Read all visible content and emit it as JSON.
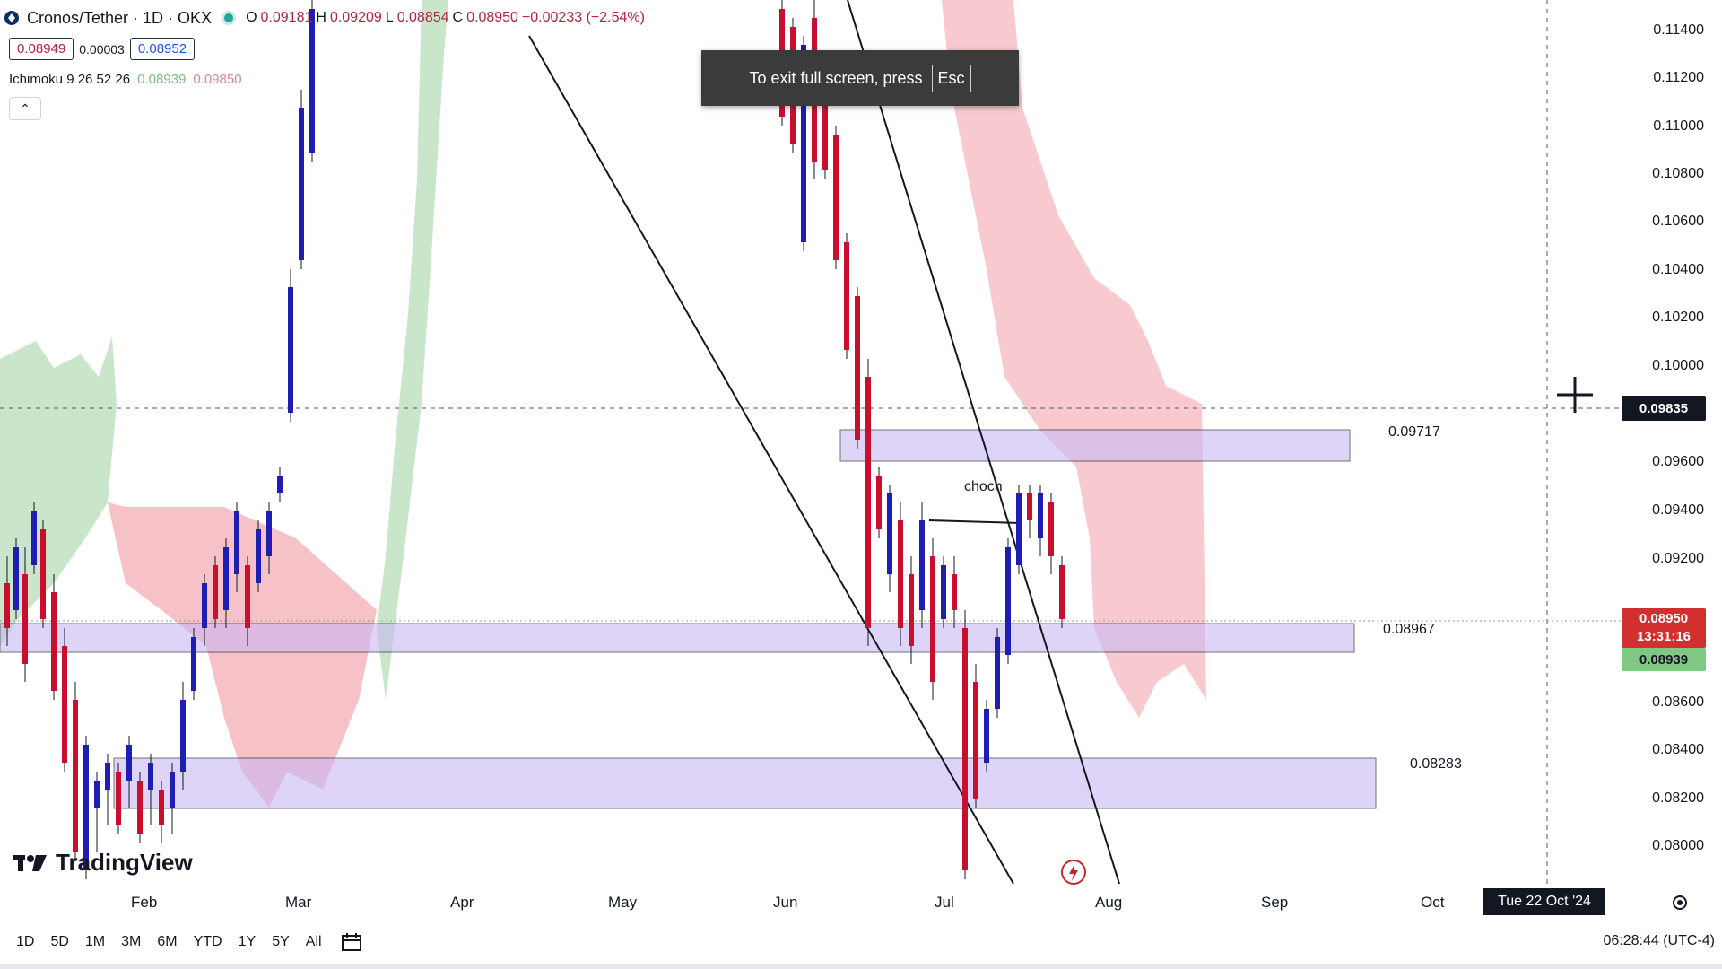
{
  "header": {
    "symbol": "Cronos/Tether · 1D · OKX",
    "open_label": "O",
    "open": "0.09181",
    "high_label": "H",
    "high": "0.09209",
    "low_label": "L",
    "low": "0.08854",
    "close_label": "C",
    "close": "0.08950",
    "change": "−0.00233 (−2.54%)"
  },
  "quote": {
    "sell": "0.08949",
    "spread": "0.00003",
    "buy": "0.08952"
  },
  "indicator": {
    "name": "Ichimoku 9 26 52 26",
    "v1": "0.08939",
    "v2": "0.09850"
  },
  "toast": {
    "text": "To exit full screen, press",
    "key": "Esc"
  },
  "price_axis": [
    "0.11400",
    "0.11200",
    "0.11000",
    "0.10800",
    "0.10600",
    "0.10400",
    "0.10200",
    "0.10000",
    "0.09600",
    "0.09400",
    "0.09200",
    "0.08600",
    "0.08400",
    "0.08200",
    "0.08000"
  ],
  "tags": {
    "crosshair": "0.09835",
    "last_price": "0.08950",
    "countdown": "13:31:16",
    "ichimoku": "0.08939"
  },
  "zones": [
    {
      "label": "0.09717"
    },
    {
      "label": "0.08967"
    },
    {
      "label": "0.08283"
    }
  ],
  "annotation": "choch",
  "time_axis": [
    "Feb",
    "Mar",
    "Apr",
    "May",
    "Jun",
    "Jul",
    "Aug",
    "Sep",
    "Oct"
  ],
  "date_tag": "Tue 22 Oct '24",
  "bottom_bar": {
    "timeframes": [
      "1D",
      "5D",
      "1M",
      "3M",
      "6M",
      "YTD",
      "1Y",
      "5Y",
      "All"
    ]
  },
  "clock": "06:28:44 (UTC-4)",
  "brand": "TradingView",
  "colors": {
    "up": "#1e1eb4",
    "down": "#c8102e",
    "zone": "#d7ccf5",
    "cloud_red": "#f4a7b0",
    "cloud_green": "#a5d6a7"
  }
}
